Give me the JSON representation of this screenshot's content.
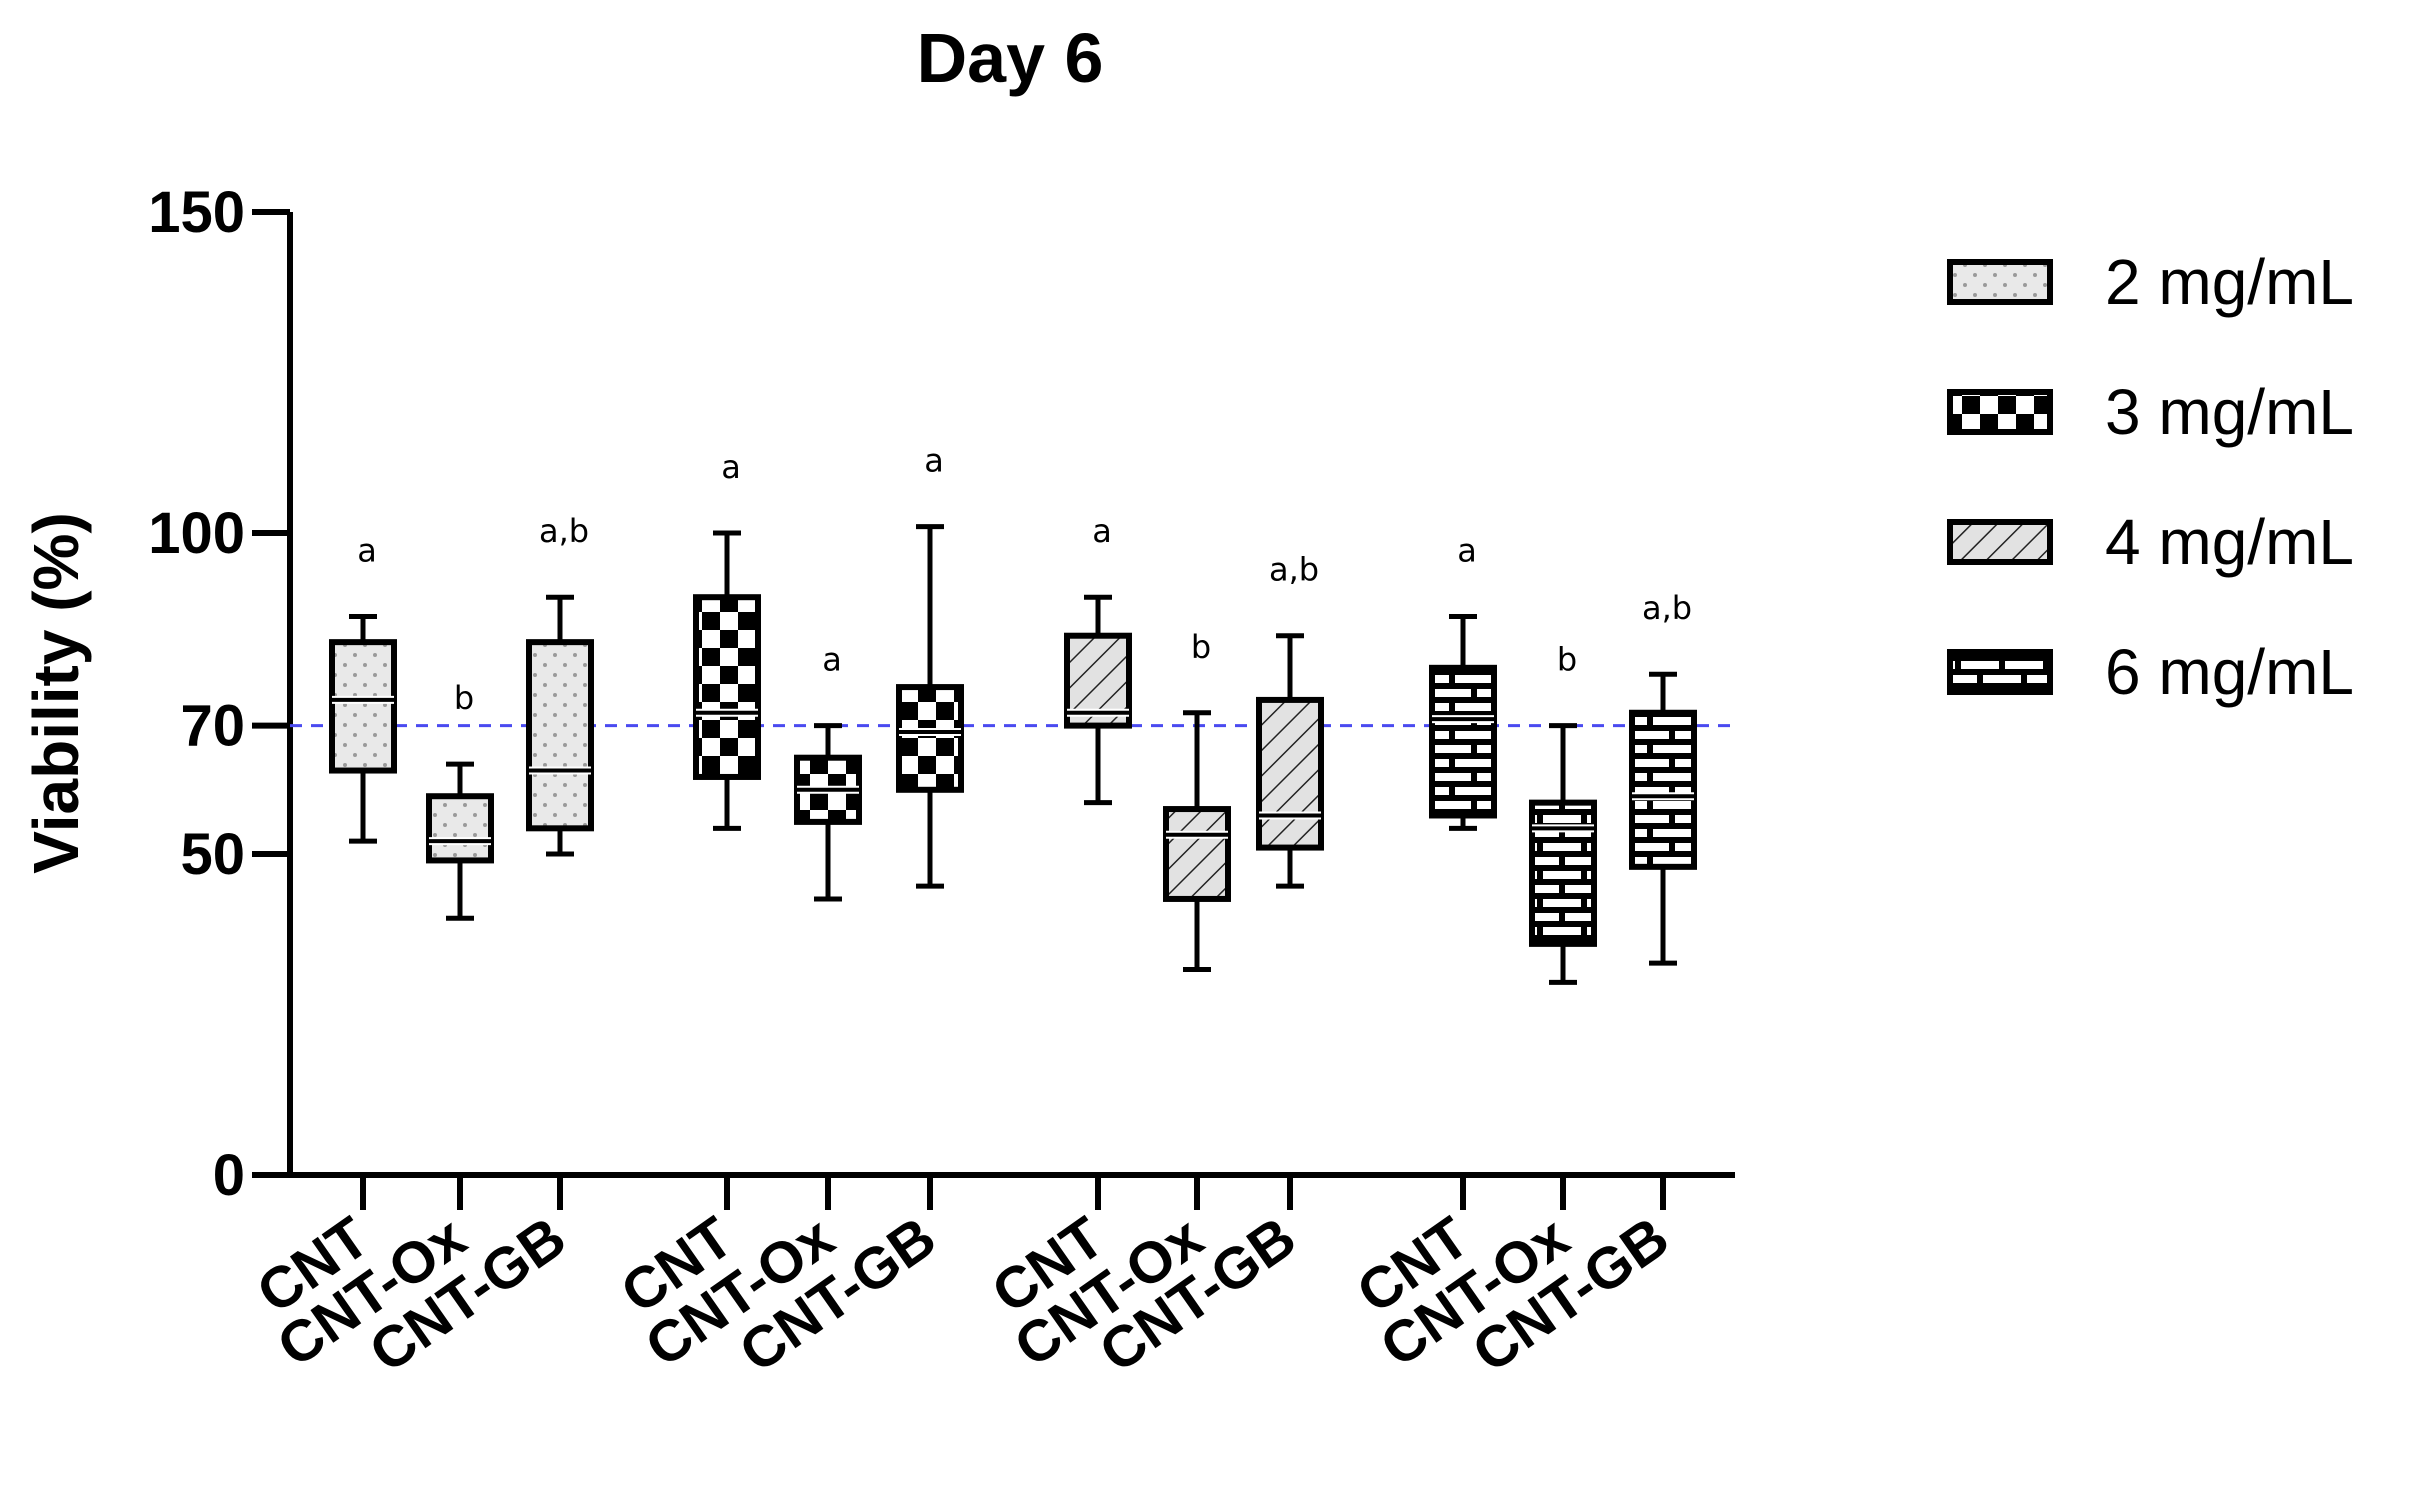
{
  "chart_data": {
    "type": "boxplot",
    "title": "Day 6",
    "xlabel": "",
    "ylabel": "Viability (%)",
    "ylim": [
      0,
      150
    ],
    "yticks": [
      0,
      50,
      70,
      100,
      150
    ],
    "reference_line": {
      "value": 70,
      "color": "#4a4af0",
      "style": "dashed"
    },
    "legend": [
      {
        "label": "2 mg/mL",
        "pattern": "dots"
      },
      {
        "label": "3 mg/mL",
        "pattern": "checker"
      },
      {
        "label": "4 mg/mL",
        "pattern": "hatch"
      },
      {
        "label": "6 mg/mL",
        "pattern": "brick"
      }
    ],
    "series": [
      {
        "name": "2 mg/mL",
        "pattern": "dots",
        "boxes": [
          {
            "category": "CNT",
            "min": 52,
            "q1": 63,
            "median": 74,
            "q3": 83,
            "max": 87,
            "sig": "a"
          },
          {
            "category": "CNT-Ox",
            "min": 40,
            "q1": 49,
            "median": 52,
            "q3": 59,
            "max": 64,
            "sig": "b"
          },
          {
            "category": "CNT-GB",
            "min": 50,
            "q1": 54,
            "median": 63,
            "q3": 83,
            "max": 90,
            "sig": "a,b"
          }
        ]
      },
      {
        "name": "3 mg/mL",
        "pattern": "checker",
        "boxes": [
          {
            "category": "CNT",
            "min": 54,
            "q1": 62,
            "median": 72,
            "q3": 90,
            "max": 100,
            "sig": "a"
          },
          {
            "category": "CNT-Ox",
            "min": 43,
            "q1": 55,
            "median": 60,
            "q3": 65,
            "max": 70,
            "sig": "a"
          },
          {
            "category": "CNT-GB",
            "min": 45,
            "q1": 60,
            "median": 69,
            "q3": 76,
            "max": 101,
            "sig": "a"
          }
        ]
      },
      {
        "name": "4 mg/mL",
        "pattern": "hatch",
        "boxes": [
          {
            "category": "CNT",
            "min": 58,
            "q1": 70,
            "median": 72,
            "q3": 84,
            "max": 90,
            "sig": "a"
          },
          {
            "category": "CNT-Ox",
            "min": 32,
            "q1": 43,
            "median": 53,
            "q3": 57,
            "max": 72,
            "sig": "b"
          },
          {
            "category": "CNT-GB",
            "min": 45,
            "q1": 51,
            "median": 56,
            "q3": 74,
            "max": 84,
            "sig": "a,b"
          }
        ]
      },
      {
        "name": "6 mg/mL",
        "pattern": "brick",
        "boxes": [
          {
            "category": "CNT",
            "min": 54,
            "q1": 56,
            "median": 71,
            "q3": 79,
            "max": 87,
            "sig": "a"
          },
          {
            "category": "CNT-Ox",
            "min": 30,
            "q1": 36,
            "median": 54,
            "q3": 58,
            "max": 70,
            "sig": "b"
          },
          {
            "category": "CNT-GB",
            "min": 33,
            "q1": 48,
            "median": 59,
            "q3": 72,
            "max": 78,
            "sig": "a,b"
          }
        ]
      }
    ]
  }
}
